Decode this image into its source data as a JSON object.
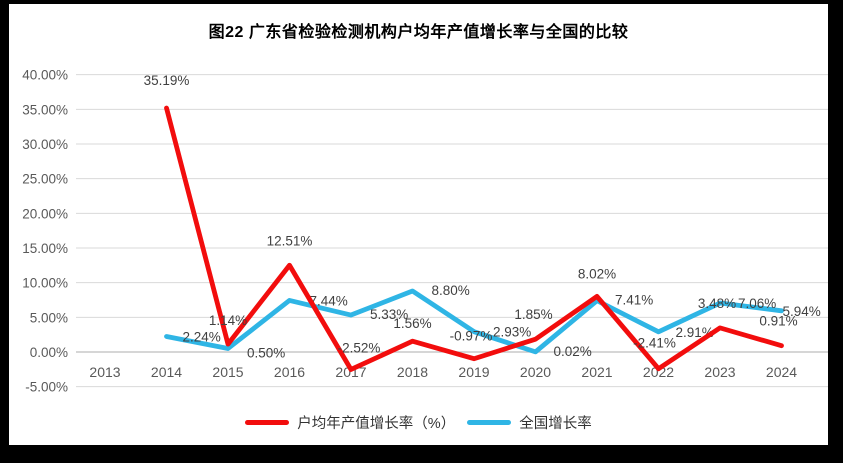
{
  "frame": {
    "border_color": "#000000",
    "canvas_color": "#ffffff"
  },
  "chart_data": {
    "type": "line",
    "title": "图22  广东省检验检测机构户均年产值增长率与全国的比较",
    "categories": [
      "2013",
      "2014",
      "2015",
      "2016",
      "2017",
      "2018",
      "2019",
      "2020",
      "2021",
      "2022",
      "2023",
      "2024"
    ],
    "series": [
      {
        "name": "户均年产值增长率（%）",
        "color": "#F20D0D",
        "values": [
          null,
          35.19,
          1.14,
          12.51,
          -2.52,
          1.56,
          -0.97,
          1.85,
          8.02,
          -2.41,
          3.48,
          0.91
        ],
        "labels": [
          null,
          "35.19%",
          "1.14%",
          "12.51%",
          "-2.52%",
          "1.56%",
          "-0.97%",
          "1.85%",
          "8.02%",
          "-2.41%",
          "3.48%",
          "0.91%"
        ]
      },
      {
        "name": "全国增长率",
        "color": "#2FB5E5",
        "values": [
          null,
          2.24,
          0.5,
          7.44,
          5.33,
          8.8,
          2.93,
          0.02,
          7.41,
          2.91,
          7.06,
          5.94
        ],
        "labels": [
          null,
          "2.24%",
          "0.50%",
          "7.44%",
          "5.33%",
          "8.80%",
          "2.93%",
          "0.02%",
          "7.41%",
          "2.91%",
          "7.06%",
          "5.94%"
        ]
      }
    ],
    "y_axis": {
      "ticks": [
        "40.00%",
        "35.00%",
        "30.00%",
        "25.00%",
        "20.00%",
        "15.00%",
        "10.00%",
        "5.00%",
        "0.00%",
        "-5.00%"
      ],
      "max": 40,
      "min": -5,
      "step": 5
    },
    "xlabel": "",
    "ylabel": "",
    "grid": true,
    "legend_position": "bottom",
    "legend": [
      {
        "label": "户均年产值增长率（%）",
        "color": "#F20D0D"
      },
      {
        "label": "全国增长率",
        "color": "#2FB5E5"
      }
    ],
    "colors": {
      "gridline": "#D9D9D9",
      "zero_axis": "#BDBDBD",
      "tick_label": "#595959",
      "data_label": "#404040"
    }
  }
}
